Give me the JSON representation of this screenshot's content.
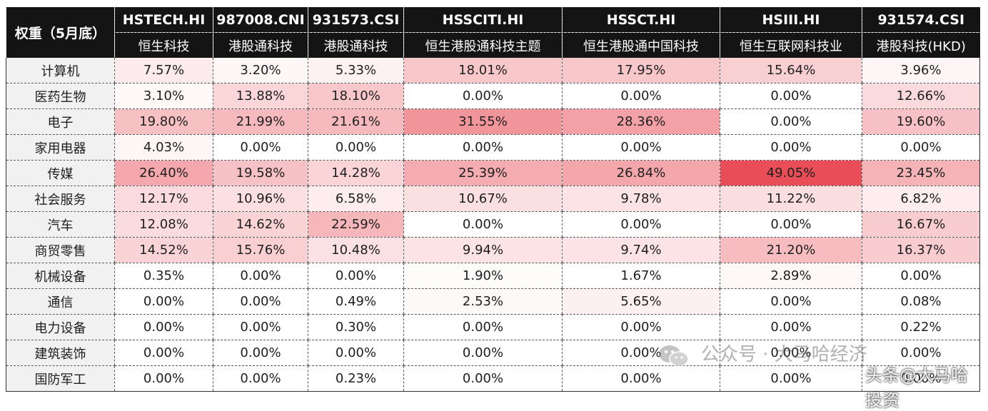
{
  "table": {
    "corner_label": "权重（5月底）",
    "columns": [
      {
        "code": "HSTECH.HI",
        "name": "恒生科技"
      },
      {
        "code": "987008.CNI",
        "name": "港股通科技"
      },
      {
        "code": "931573.CSI",
        "name": "港股通科技"
      },
      {
        "code": "HSSCITI.HI",
        "name": "恒生港股通科技主题"
      },
      {
        "code": "HSSCT.HI",
        "name": "恒生港股通中国科技"
      },
      {
        "code": "HSIII.HI",
        "name": "恒生互联网科技业"
      },
      {
        "code": "931574.CSI",
        "name": "港股科技(HKD)"
      }
    ],
    "rows": [
      {
        "industry": "计算机",
        "values": [
          "7.57%",
          "3.20%",
          "5.33%",
          "18.01%",
          "17.95%",
          "15.64%",
          "3.96%"
        ]
      },
      {
        "industry": "医药生物",
        "values": [
          "3.10%",
          "13.88%",
          "18.10%",
          "0.00%",
          "0.00%",
          "0.00%",
          "12.66%"
        ]
      },
      {
        "industry": "电子",
        "values": [
          "19.80%",
          "21.99%",
          "21.61%",
          "31.55%",
          "28.36%",
          "0.00%",
          "19.60%"
        ]
      },
      {
        "industry": "家用电器",
        "values": [
          "4.03%",
          "0.00%",
          "0.00%",
          "0.00%",
          "0.00%",
          "0.00%",
          "0.00%"
        ]
      },
      {
        "industry": "传媒",
        "values": [
          "26.40%",
          "19.58%",
          "14.28%",
          "25.39%",
          "26.84%",
          "49.05%",
          "23.45%"
        ]
      },
      {
        "industry": "社会服务",
        "values": [
          "12.17%",
          "10.96%",
          "6.58%",
          "10.67%",
          "9.78%",
          "11.22%",
          "6.82%"
        ]
      },
      {
        "industry": "汽车",
        "values": [
          "12.08%",
          "14.62%",
          "22.59%",
          "0.00%",
          "0.00%",
          "0.00%",
          "16.67%"
        ]
      },
      {
        "industry": "商贸零售",
        "values": [
          "14.52%",
          "15.76%",
          "10.48%",
          "9.94%",
          "9.74%",
          "21.20%",
          "16.37%"
        ]
      },
      {
        "industry": "机械设备",
        "values": [
          "0.35%",
          "0.00%",
          "0.00%",
          "1.90%",
          "1.67%",
          "2.89%",
          "0.00%"
        ]
      },
      {
        "industry": "通信",
        "values": [
          "0.00%",
          "0.00%",
          "0.49%",
          "2.53%",
          "5.65%",
          "0.00%",
          "0.08%"
        ]
      },
      {
        "industry": "电力设备",
        "values": [
          "0.00%",
          "0.00%",
          "0.30%",
          "0.00%",
          "0.00%",
          "0.00%",
          "0.22%"
        ]
      },
      {
        "industry": "建筑装饰",
        "values": [
          "0.00%",
          "0.00%",
          "0.00%",
          "0.00%",
          "0.00%",
          "0.00%",
          "0.00%"
        ]
      },
      {
        "industry": "国防军工",
        "values": [
          "0.00%",
          "0.00%",
          "0.23%",
          "0.00%",
          "0.00%",
          "0.00%",
          "0.00%"
        ]
      }
    ],
    "heat_color": "#e8454f"
  },
  "watermark": {
    "line1": "公众号 · 大马哈经济",
    "line2": "头条@大马哈投资",
    "icon": "wechat-icon"
  }
}
